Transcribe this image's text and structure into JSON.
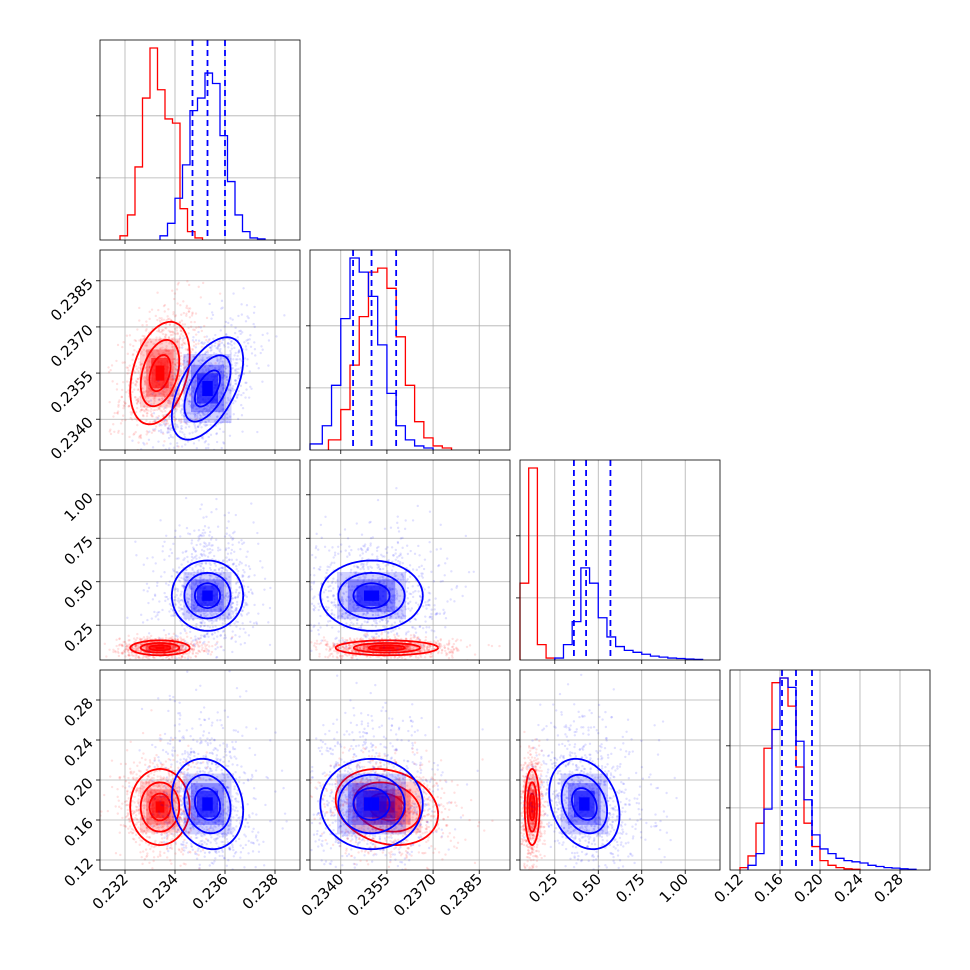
{
  "chart_data": {
    "type": "corner",
    "title": "",
    "grid": true,
    "params": [
      {
        "id": "p0",
        "range": [
          0.231,
          0.239
        ],
        "ticks": [
          "0.232",
          "0.234",
          "0.236",
          "0.238"
        ]
      },
      {
        "id": "p1",
        "range": [
          0.233,
          0.2395
        ],
        "ticks": [
          "0.2340",
          "0.2355",
          "0.2370",
          "0.2385"
        ]
      },
      {
        "id": "p2",
        "range": [
          0.05,
          1.2
        ],
        "ticks": [
          "0.25",
          "0.50",
          "0.75",
          "1.00"
        ]
      },
      {
        "id": "p3",
        "range": [
          0.11,
          0.31
        ],
        "ticks": [
          "0.12",
          "0.16",
          "0.20",
          "0.24",
          "0.28"
        ]
      }
    ],
    "series": [
      {
        "color": "#ff0000",
        "means": [
          0.2334,
          0.2355,
          0.12,
          0.173
        ],
        "sds": [
          0.0005,
          0.0007,
          0.018,
          0.016
        ],
        "corr": [
          [
            1,
            0.35,
            0,
            0
          ],
          [
            0.35,
            1,
            0,
            -0.2
          ],
          [
            0,
            0,
            1,
            0
          ],
          [
            0,
            -0.2,
            0,
            1
          ]
        ],
        "quantiles": null
      },
      {
        "color": "#0000ff",
        "means": [
          0.2353,
          0.235,
          0.42,
          0.176
        ],
        "sds": [
          0.0006,
          0.0007,
          0.085,
          0.019
        ],
        "corr": [
          [
            1,
            0.55,
            0,
            -0.15
          ],
          [
            0.55,
            1,
            0,
            0
          ],
          [
            0,
            0,
            1,
            -0.25
          ],
          [
            -0.15,
            0,
            -0.25,
            1
          ]
        ],
        "quantiles": [
          [
            0.2347,
            0.2353,
            0.236
          ],
          [
            0.2344,
            0.235,
            0.2358
          ],
          [
            0.36,
            0.43,
            0.57
          ],
          [
            0.162,
            0.176,
            0.192
          ]
        ]
      }
    ],
    "diag_hists": [
      {
        "series": [
          {
            "color": "#ff0000",
            "edges": [
              0.2318,
              0.2321,
              0.2324,
              0.2327,
              0.233,
              0.2333,
              0.2336,
              0.2339,
              0.2342,
              0.2345,
              0.2348,
              0.2351
            ],
            "counts": [
              0.02,
              0.12,
              0.35,
              0.68,
              0.92,
              0.72,
              0.58,
              0.56,
              0.15,
              0.04,
              0.01
            ]
          },
          {
            "color": "#0000ff",
            "edges": [
              0.2334,
              0.2337,
              0.234,
              0.2343,
              0.2346,
              0.2349,
              0.2352,
              0.2355,
              0.2358,
              0.2361,
              0.2364,
              0.2367,
              0.237,
              0.2373,
              0.2376
            ],
            "counts": [
              0.02,
              0.08,
              0.2,
              0.36,
              0.62,
              0.68,
              0.8,
              0.75,
              0.5,
              0.28,
              0.12,
              0.04,
              0.01,
              0.005
            ]
          }
        ]
      },
      {
        "series": [
          {
            "color": "#ff0000",
            "edges": [
              0.2336,
              0.234,
              0.2343,
              0.2346,
              0.2349,
              0.2352,
              0.2355,
              0.2358,
              0.2361,
              0.2364,
              0.2367,
              0.237,
              0.2373,
              0.2376
            ],
            "counts": [
              0.05,
              0.2,
              0.42,
              0.66,
              0.88,
              0.9,
              0.8,
              0.56,
              0.32,
              0.14,
              0.06,
              0.02,
              0.01
            ]
          },
          {
            "color": "#0000ff",
            "edges": [
              0.233,
              0.2334,
              0.2337,
              0.234,
              0.2343,
              0.2346,
              0.2349,
              0.2352,
              0.2355,
              0.2358,
              0.2361,
              0.2364,
              0.2367,
              0.237
            ],
            "counts": [
              0.03,
              0.12,
              0.32,
              0.65,
              0.95,
              0.88,
              0.76,
              0.52,
              0.28,
              0.12,
              0.05,
              0.02,
              0.01
            ]
          }
        ]
      },
      {
        "series": [
          {
            "color": "#ff0000",
            "edges": [
              0.05,
              0.1,
              0.15,
              0.2,
              0.25
            ],
            "counts": [
              0.4,
              1.0,
              0.08,
              0.01
            ]
          },
          {
            "color": "#0000ff",
            "edges": [
              0.25,
              0.3,
              0.35,
              0.4,
              0.45,
              0.5,
              0.55,
              0.6,
              0.65,
              0.7,
              0.75,
              0.8,
              0.85,
              0.9,
              0.95,
              1.0,
              1.05,
              1.1
            ],
            "counts": [
              0.01,
              0.08,
              0.2,
              0.48,
              0.4,
              0.22,
              0.12,
              0.07,
              0.05,
              0.04,
              0.03,
              0.02,
              0.015,
              0.01,
              0.008,
              0.005,
              0.003
            ]
          }
        ]
      },
      {
        "series": [
          {
            "color": "#ff0000",
            "edges": [
              0.12,
              0.128,
              0.136,
              0.144,
              0.152,
              0.16,
              0.168,
              0.176,
              0.184,
              0.192,
              0.2,
              0.208,
              0.216,
              0.224,
              0.232,
              0.24
            ],
            "counts": [
              0.01,
              0.06,
              0.2,
              0.52,
              0.8,
              0.82,
              0.7,
              0.44,
              0.2,
              0.1,
              0.04,
              0.02,
              0.01,
              0.005,
              0.003
            ]
          },
          {
            "color": "#0000ff",
            "edges": [
              0.128,
              0.136,
              0.144,
              0.152,
              0.16,
              0.168,
              0.176,
              0.184,
              0.192,
              0.2,
              0.208,
              0.216,
              0.224,
              0.232,
              0.24,
              0.248,
              0.256,
              0.264,
              0.272,
              0.28,
              0.288,
              0.296
            ],
            "counts": [
              0.02,
              0.07,
              0.26,
              0.6,
              0.82,
              0.78,
              0.55,
              0.3,
              0.15,
              0.09,
              0.07,
              0.05,
              0.04,
              0.035,
              0.03,
              0.02,
              0.015,
              0.01,
              0.008,
              0.005,
              0.003
            ]
          }
        ]
      }
    ]
  }
}
